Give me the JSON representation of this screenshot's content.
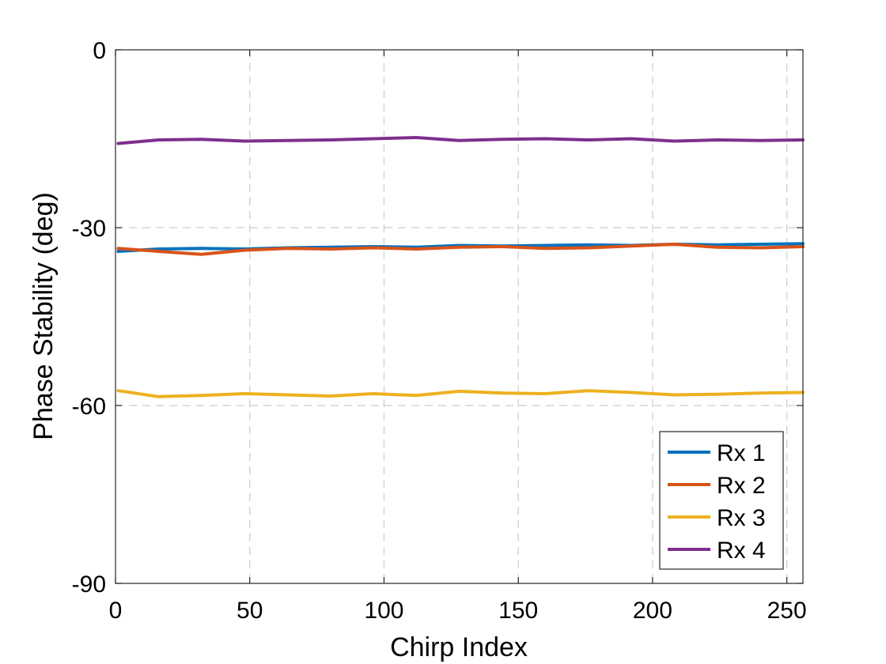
{
  "chart_data": {
    "type": "line",
    "title": "",
    "xlabel": "Chirp Index",
    "ylabel": "Phase Stability (deg)",
    "xlim": [
      0,
      256
    ],
    "ylim": [
      -90,
      0
    ],
    "xticks": [
      0,
      50,
      100,
      150,
      200,
      250
    ],
    "yticks": [
      0,
      -30,
      -60,
      -90
    ],
    "xtick_labels": [
      "0",
      "50",
      "100",
      "150",
      "200",
      "250"
    ],
    "ytick_labels": [
      "0",
      "-30",
      "-60",
      "-90"
    ],
    "grid": "dashed",
    "legend_position": "bottom-right",
    "series": [
      {
        "name": "Rx 1",
        "color": "#0072BD",
        "x": [
          1,
          16,
          32,
          48,
          64,
          80,
          96,
          112,
          128,
          144,
          160,
          176,
          192,
          208,
          224,
          240,
          256
        ],
        "values": [
          -34.0,
          -33.6,
          -33.5,
          -33.6,
          -33.4,
          -33.3,
          -33.2,
          -33.3,
          -33.0,
          -33.1,
          -33.0,
          -32.9,
          -33.0,
          -32.8,
          -32.9,
          -32.8,
          -32.7
        ]
      },
      {
        "name": "Rx 2",
        "color": "#D95319",
        "x": [
          1,
          16,
          32,
          48,
          64,
          80,
          96,
          112,
          128,
          144,
          160,
          176,
          192,
          208,
          224,
          240,
          256
        ],
        "values": [
          -33.5,
          -34.0,
          -34.5,
          -33.8,
          -33.5,
          -33.6,
          -33.4,
          -33.6,
          -33.3,
          -33.2,
          -33.5,
          -33.4,
          -33.1,
          -32.8,
          -33.3,
          -33.4,
          -33.2
        ]
      },
      {
        "name": "Rx 3",
        "color": "#EDB120",
        "x": [
          1,
          16,
          32,
          48,
          64,
          80,
          96,
          112,
          128,
          144,
          160,
          176,
          192,
          208,
          224,
          240,
          256
        ],
        "values": [
          -57.5,
          -58.5,
          -58.3,
          -58.0,
          -58.2,
          -58.4,
          -58.0,
          -58.3,
          -57.6,
          -57.9,
          -58.0,
          -57.5,
          -57.8,
          -58.2,
          -58.1,
          -57.9,
          -57.8
        ]
      },
      {
        "name": "Rx 4",
        "color": "#7E2F8E",
        "x": [
          1,
          16,
          32,
          48,
          64,
          80,
          96,
          112,
          128,
          144,
          160,
          176,
          192,
          208,
          224,
          240,
          256
        ],
        "values": [
          -15.8,
          -15.2,
          -15.1,
          -15.4,
          -15.3,
          -15.2,
          -15.0,
          -14.8,
          -15.3,
          -15.1,
          -15.0,
          -15.2,
          -15.0,
          -15.4,
          -15.2,
          -15.3,
          -15.2
        ]
      }
    ]
  }
}
